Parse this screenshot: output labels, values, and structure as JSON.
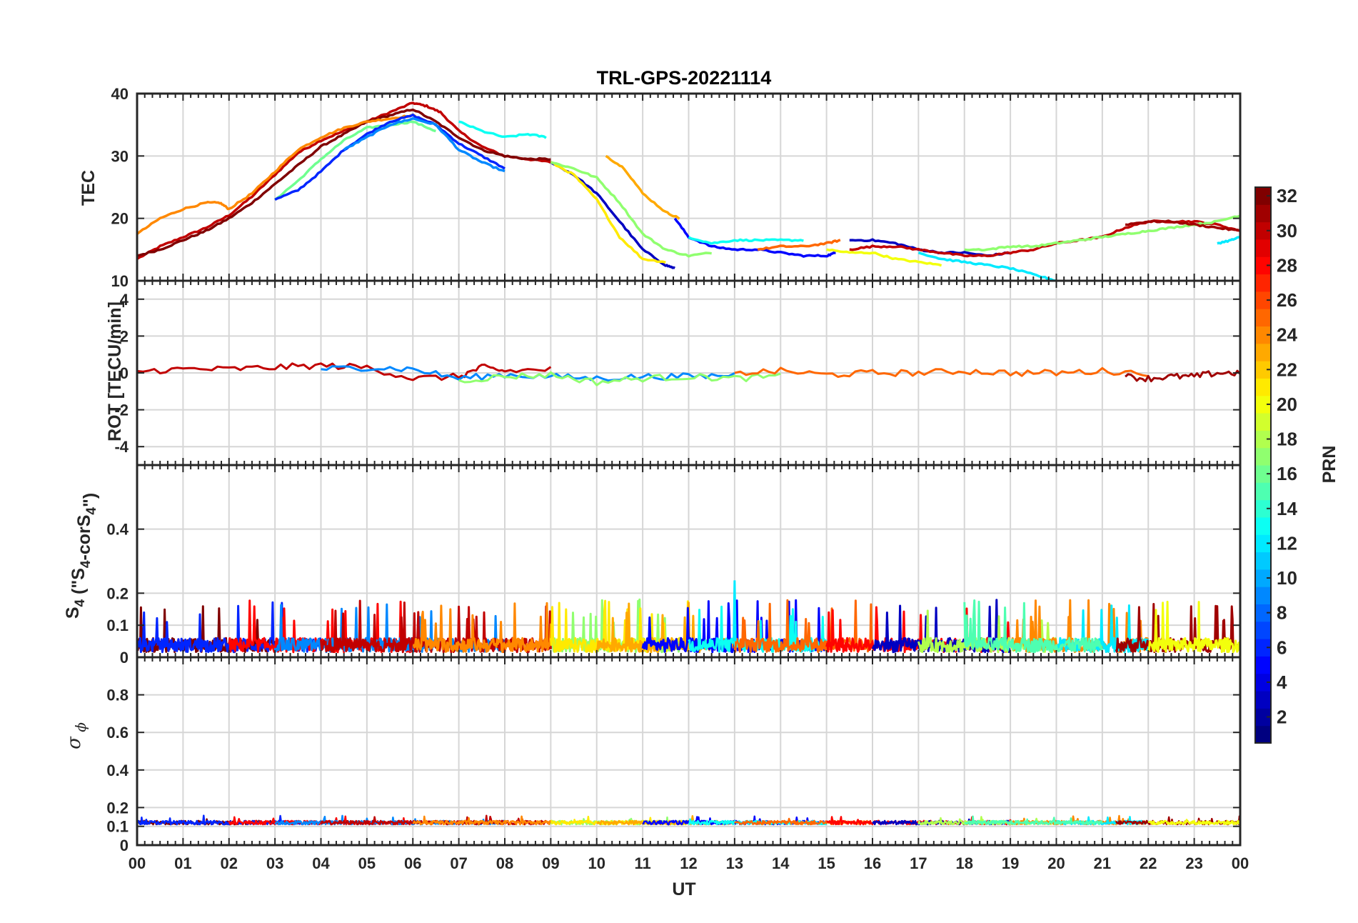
{
  "title": "TRL-GPS-20221114",
  "colorbar": {
    "label": "PRN",
    "range": [
      1,
      32
    ],
    "ticks": [
      "2",
      "4",
      "6",
      "8",
      "10",
      "12",
      "14",
      "16",
      "18",
      "20",
      "22",
      "24",
      "26",
      "28",
      "30",
      "32"
    ],
    "colormap": "jet"
  },
  "chart_data": [
    {
      "type": "line",
      "panel": "TEC",
      "ylabel": "TEC",
      "ylim": [
        10,
        40
      ],
      "ytick_labels": [
        "10",
        "20",
        "30",
        "40"
      ],
      "xlim": [
        0,
        24
      ],
      "grid": true,
      "series": [
        {
          "prn": 30,
          "x": [
            0.0,
            0.5,
            1.0,
            1.5,
            2.0,
            2.5,
            3.0,
            3.5,
            4.0,
            4.5,
            5.0,
            5.5,
            6.0,
            6.3,
            6.6,
            7.0,
            7.5,
            8.0,
            8.5,
            9.0
          ],
          "y": [
            13.5,
            15.5,
            17.0,
            18.5,
            20.5,
            23.5,
            27.0,
            30.5,
            32.5,
            34.0,
            35.5,
            37.0,
            38.5,
            38.0,
            37.0,
            34.0,
            31.5,
            30.0,
            29.5,
            29.0
          ]
        },
        {
          "prn": 32,
          "x": [
            0.0,
            0.5,
            1.0,
            1.5,
            2.0,
            2.5,
            3.0,
            3.5,
            4.0,
            4.5,
            5.0,
            5.5,
            6.0,
            6.5,
            7.0,
            7.5,
            8.0,
            8.5,
            9.0
          ],
          "y": [
            14.0,
            15.0,
            16.5,
            18.0,
            20.0,
            22.5,
            25.5,
            28.5,
            31.5,
            33.5,
            35.5,
            36.5,
            37.5,
            35.5,
            33.0,
            31.0,
            30.0,
            29.5,
            29.5
          ]
        },
        {
          "prn": 24,
          "x": [
            0.0,
            0.5,
            1.0,
            1.5,
            1.8,
            2.0,
            2.5,
            3.0,
            3.5,
            4.0,
            4.5,
            5.0,
            5.5,
            6.0,
            6.3
          ],
          "y": [
            17.5,
            20.0,
            21.5,
            22.5,
            22.5,
            21.5,
            24.0,
            27.5,
            31.0,
            33.0,
            34.5,
            35.5,
            36.0,
            36.5,
            35.5
          ]
        },
        {
          "prn": 16,
          "x": [
            3.0,
            3.5,
            4.0,
            4.5,
            5.0,
            5.5,
            6.0,
            6.5
          ],
          "y": [
            23.0,
            26.0,
            29.5,
            32.5,
            34.5,
            35.0,
            35.5,
            34.0
          ]
        },
        {
          "prn": 6,
          "x": [
            3.0,
            3.5,
            4.0,
            4.5,
            5.0,
            5.5,
            6.0,
            6.5,
            7.0,
            7.5,
            8.0
          ],
          "y": [
            23.0,
            24.5,
            27.5,
            31.0,
            33.5,
            35.5,
            36.5,
            35.0,
            32.0,
            30.0,
            28.0
          ]
        },
        {
          "prn": 9,
          "x": [
            4.5,
            5.0,
            5.5,
            6.0,
            6.5,
            7.0,
            7.5,
            8.0
          ],
          "y": [
            31.0,
            33.0,
            35.0,
            36.0,
            35.0,
            31.0,
            29.0,
            27.5
          ]
        },
        {
          "prn": 13,
          "x": [
            7.0,
            7.5,
            8.0,
            8.5,
            8.9
          ],
          "y": [
            35.5,
            34.0,
            33.0,
            33.5,
            33.0
          ]
        },
        {
          "prn": 3,
          "x": [
            9.0,
            9.5,
            10.0,
            10.5,
            11.0,
            11.5,
            11.7
          ],
          "y": [
            29.0,
            27.0,
            24.0,
            19.5,
            15.0,
            12.5,
            12.0
          ]
        },
        {
          "prn": 21,
          "x": [
            9.0,
            9.5,
            10.0,
            10.5,
            11.0,
            11.5
          ],
          "y": [
            29.0,
            27.0,
            23.0,
            17.0,
            13.5,
            13.0
          ]
        },
        {
          "prn": 17,
          "x": [
            9.0,
            9.5,
            10.0,
            10.5,
            11.0,
            11.5,
            12.0,
            12.5
          ],
          "y": [
            29.0,
            28.0,
            26.5,
            22.5,
            17.5,
            15.0,
            14.0,
            14.5
          ]
        },
        {
          "prn": 23,
          "x": [
            10.2,
            10.6,
            11.0,
            11.5,
            11.8
          ],
          "y": [
            30.0,
            28.0,
            24.0,
            21.0,
            20.0
          ]
        },
        {
          "prn": 5,
          "x": [
            11.7,
            12.0,
            12.5,
            13.0,
            13.5,
            14.0,
            14.5,
            15.0,
            15.2
          ],
          "y": [
            20.0,
            17.0,
            15.5,
            15.0,
            15.0,
            14.5,
            14.0,
            14.0,
            14.5
          ]
        },
        {
          "prn": 13,
          "x": [
            12.0,
            12.5,
            13.0,
            13.5,
            14.0,
            14.5
          ],
          "y": [
            17.0,
            16.0,
            16.5,
            16.5,
            16.5,
            16.5
          ]
        },
        {
          "prn": 25,
          "x": [
            13.5,
            14.0,
            14.5,
            15.0,
            15.3
          ],
          "y": [
            15.0,
            15.5,
            15.5,
            16.0,
            16.5
          ]
        },
        {
          "prn": 3,
          "x": [
            15.5,
            16.0,
            16.5,
            17.0,
            17.5,
            18.0,
            18.5,
            19.0
          ],
          "y": [
            16.5,
            16.5,
            16.0,
            15.0,
            14.5,
            14.5,
            14.0,
            14.5
          ]
        },
        {
          "prn": 20,
          "x": [
            15.0,
            15.5,
            16.0,
            16.5,
            17.0,
            17.5
          ],
          "y": [
            15.0,
            14.5,
            14.5,
            13.5,
            13.0,
            12.5
          ]
        },
        {
          "prn": 30,
          "x": [
            15.5,
            16.0,
            16.5,
            17.0,
            17.5,
            18.0,
            18.5,
            19.0,
            19.5,
            20.0,
            20.5,
            21.0,
            21.5,
            22.0,
            22.5,
            23.0,
            23.5,
            24.0
          ],
          "y": [
            15.0,
            15.5,
            15.5,
            15.0,
            14.5,
            14.0,
            14.0,
            14.5,
            15.0,
            16.0,
            16.5,
            17.0,
            18.5,
            19.5,
            19.5,
            19.5,
            19.0,
            18.0
          ]
        },
        {
          "prn": 17,
          "x": [
            18.0,
            18.5,
            19.0,
            19.5,
            20.0,
            20.5,
            21.0,
            21.5,
            22.0,
            22.5,
            23.0,
            23.5,
            24.0
          ],
          "y": [
            15.0,
            15.0,
            15.5,
            15.5,
            16.0,
            16.5,
            17.0,
            17.5,
            18.0,
            18.5,
            19.0,
            19.5,
            20.5
          ]
        },
        {
          "prn": 12,
          "x": [
            17.0,
            17.5,
            18.0,
            18.5,
            19.0,
            19.5,
            20.0,
            20.3
          ],
          "y": [
            14.5,
            13.5,
            13.0,
            12.5,
            12.0,
            11.0,
            10.0,
            9.5
          ]
        },
        {
          "prn": 31,
          "x": [
            21.5,
            22.0,
            22.5,
            23.0,
            23.5,
            24.0
          ],
          "y": [
            19.0,
            19.5,
            19.5,
            19.0,
            18.5,
            18.0
          ]
        },
        {
          "prn": 12,
          "x": [
            23.5,
            23.8,
            24.0
          ],
          "y": [
            16.0,
            16.5,
            17.0
          ]
        }
      ]
    },
    {
      "type": "line",
      "panel": "ROT",
      "ylabel": "ROT [TECU/min]",
      "ylim": [
        -5,
        5
      ],
      "ytick_labels": [
        "-4",
        "-2",
        "0",
        "2",
        "4"
      ],
      "xlim": [
        0,
        24
      ],
      "grid": true,
      "series": [
        {
          "prn": 30,
          "x": [
            0,
            1,
            2,
            3,
            4,
            5,
            6,
            7,
            7.5,
            8,
            9
          ],
          "y": [
            0.1,
            0.2,
            0.2,
            0.3,
            0.4,
            0.3,
            -0.3,
            -0.2,
            0.3,
            0.1,
            0.2
          ]
        },
        {
          "prn": 9,
          "x": [
            4,
            5,
            6,
            7,
            8,
            9,
            10,
            11,
            12,
            13
          ],
          "y": [
            0.2,
            0.3,
            0.2,
            -0.3,
            -0.1,
            -0.2,
            -0.3,
            -0.2,
            -0.2,
            -0.1
          ]
        },
        {
          "prn": 17,
          "x": [
            7,
            8,
            9,
            10,
            11,
            12,
            13,
            14
          ],
          "y": [
            -0.4,
            -0.2,
            -0.1,
            -0.5,
            -0.3,
            -0.2,
            -0.3,
            -0.2
          ]
        },
        {
          "prn": 25,
          "x": [
            13,
            14,
            15,
            16,
            17,
            18,
            19,
            20,
            21,
            22
          ],
          "y": [
            0.0,
            0.1,
            -0.1,
            0.0,
            0.0,
            0.1,
            0.0,
            0.0,
            0.1,
            0.0
          ]
        },
        {
          "prn": 31,
          "x": [
            21.5,
            22,
            22.5,
            23,
            23.5,
            24
          ],
          "y": [
            -0.2,
            -0.3,
            -0.2,
            -0.2,
            0.0,
            0.0
          ]
        }
      ]
    },
    {
      "type": "line",
      "panel": "S4",
      "ylabel": "S4 (\"S4-corS4\")",
      "ylim": [
        0,
        0.6
      ],
      "ytick_labels": [
        "0",
        "0.1",
        "0.2",
        "0.4"
      ],
      "xlim": [
        0,
        24
      ],
      "grid": true,
      "series_summary": {
        "baseline": 0.04,
        "typical_peak": 0.15,
        "max_peak": {
          "x": 13.0,
          "y": 0.24
        }
      }
    },
    {
      "type": "line",
      "panel": "sigma_phi",
      "ylabel": "σ ϕ",
      "ylim": [
        0,
        1
      ],
      "ytick_labels": [
        "0",
        "0.1",
        "0.2",
        "0.4",
        "0.6",
        "0.8"
      ],
      "xlim": [
        0,
        24
      ],
      "xlabel": "UT",
      "xtick_labels": [
        "00",
        "01",
        "02",
        "03",
        "04",
        "05",
        "06",
        "07",
        "08",
        "09",
        "10",
        "11",
        "12",
        "13",
        "14",
        "15",
        "16",
        "17",
        "18",
        "19",
        "20",
        "21",
        "22",
        "23",
        "00"
      ],
      "grid": true,
      "series_summary": {
        "baseline": 0.12,
        "typical_peak": 0.15
      }
    }
  ]
}
